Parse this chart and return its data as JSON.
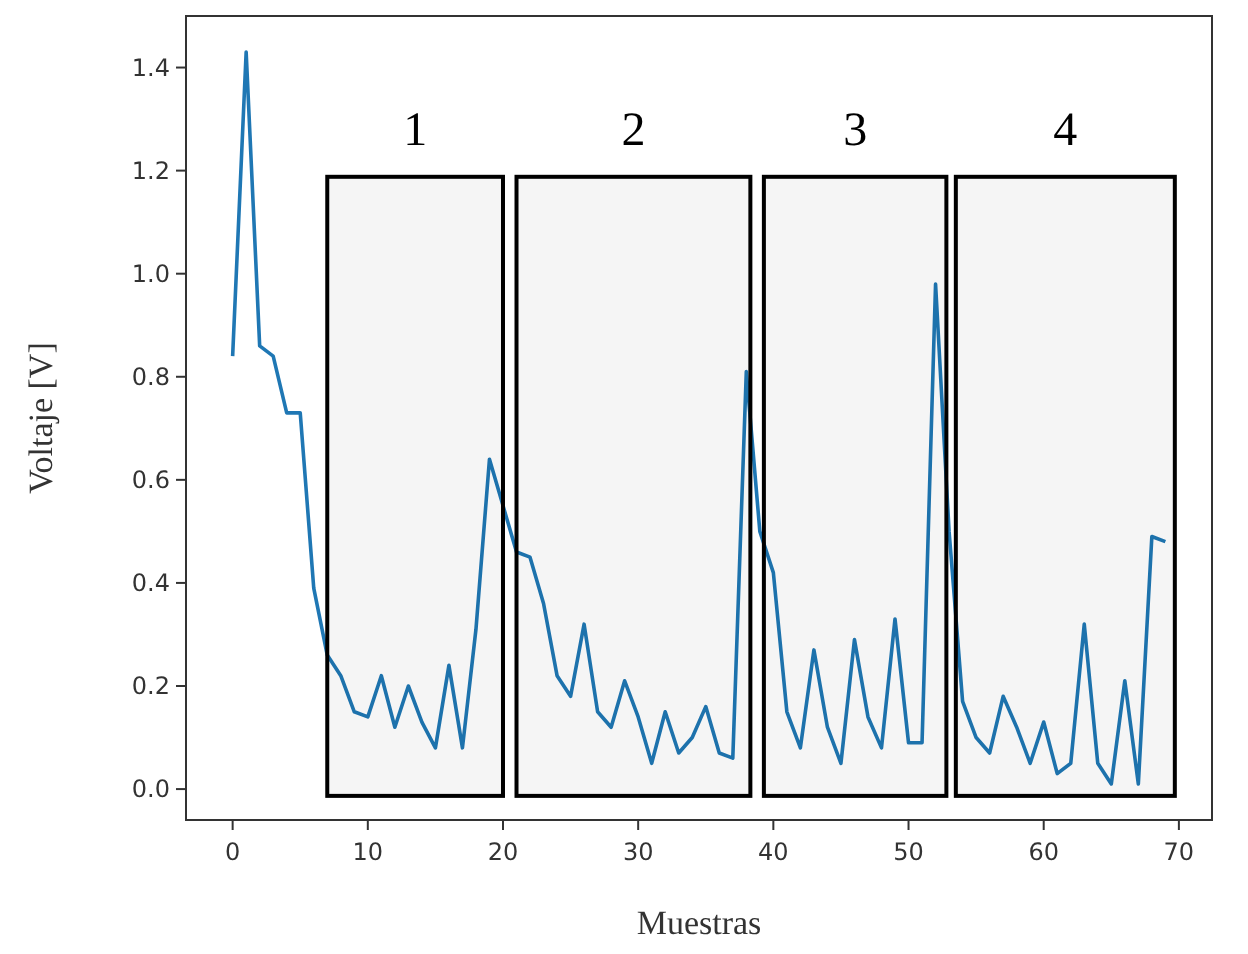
{
  "chart_data": {
    "type": "line",
    "xlabel": "Muestras",
    "ylabel": "Voltaje [V]",
    "x": [
      0,
      1,
      2,
      3,
      4,
      5,
      6,
      7,
      8,
      9,
      10,
      11,
      12,
      13,
      14,
      15,
      16,
      17,
      18,
      19,
      20,
      21,
      22,
      23,
      24,
      25,
      26,
      27,
      28,
      29,
      30,
      31,
      32,
      33,
      34,
      35,
      36,
      37,
      38,
      39,
      40,
      41,
      42,
      43,
      44,
      45,
      46,
      47,
      48,
      49,
      50,
      51,
      52,
      53,
      54,
      55,
      56,
      57,
      58,
      59,
      60,
      61,
      62,
      63,
      64,
      65,
      66,
      67,
      68,
      69
    ],
    "series": [
      {
        "color": "#1f77b4",
        "values": [
          0.84,
          1.43,
          0.86,
          0.84,
          0.73,
          0.73,
          0.39,
          0.26,
          0.22,
          0.15,
          0.14,
          0.22,
          0.12,
          0.2,
          0.13,
          0.08,
          0.24,
          0.08,
          0.31,
          0.64,
          0.55,
          0.46,
          0.45,
          0.36,
          0.22,
          0.18,
          0.32,
          0.15,
          0.12,
          0.21,
          0.14,
          0.05,
          0.15,
          0.07,
          0.1,
          0.16,
          0.07,
          0.06,
          0.81,
          0.5,
          0.42,
          0.15,
          0.08,
          0.27,
          0.12,
          0.05,
          0.29,
          0.14,
          0.08,
          0.33,
          0.09,
          0.09,
          0.98,
          0.5,
          0.17,
          0.1,
          0.07,
          0.18,
          0.12,
          0.05,
          0.13,
          0.03,
          0.05,
          0.32,
          0.05,
          0.01,
          0.21,
          0.01,
          0.49,
          0.48
        ]
      }
    ],
    "xlim": [
      -3.45,
      72.45
    ],
    "ylim": [
      -0.06,
      1.5
    ],
    "xticks": [
      0,
      10,
      20,
      30,
      40,
      50,
      60,
      70
    ],
    "yticks": [
      {
        "value": 0,
        "label": "0.0"
      },
      0.2,
      0.4,
      0.6,
      0.8,
      {
        "value": 1,
        "label": "1.0"
      },
      1.2,
      1.4
    ],
    "bands": [
      {
        "axis": "x",
        "from": 7,
        "to": 20,
        "label": "1",
        "color": "#000000"
      },
      {
        "axis": "x",
        "from": 21,
        "to": 38.3,
        "label": "2",
        "color": "#000000"
      },
      {
        "axis": "x",
        "from": 39.3,
        "to": 52.8,
        "label": "3",
        "color": "#000000"
      },
      {
        "axis": "x",
        "from": 53.5,
        "to": 69.7,
        "label": "4",
        "color": "#000000"
      }
    ],
    "grid": false,
    "marker": "none",
    "line_style": "solid"
  }
}
